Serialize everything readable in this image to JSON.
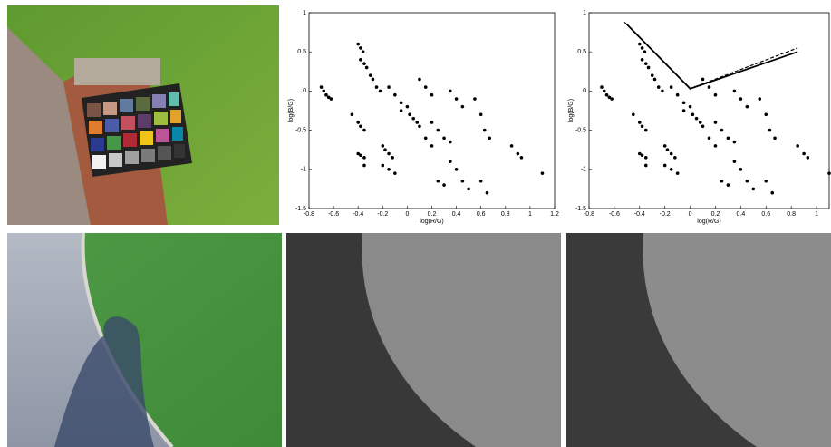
{
  "chart_data": [
    {
      "type": "scatter",
      "xlabel": "log(R/G)",
      "ylabel": "log(B/G)",
      "xlim": [
        -0.8,
        1.2
      ],
      "ylim": [
        -1.5,
        1
      ],
      "xticks": [
        -0.8,
        -0.6,
        -0.4,
        -0.2,
        0,
        0.2,
        0.4,
        0.6,
        0.8,
        1,
        1.2
      ],
      "yticks": [
        -1.5,
        -1,
        -0.5,
        0,
        0.5,
        1
      ],
      "color": "#000000",
      "x": [
        -0.7,
        -0.68,
        -0.66,
        -0.64,
        -0.62,
        -0.4,
        -0.38,
        -0.36,
        -0.38,
        -0.35,
        -0.33,
        -0.3,
        -0.28,
        -0.25,
        -0.22,
        -0.45,
        -0.4,
        -0.38,
        -0.35,
        -0.4,
        -0.38,
        -0.35,
        -0.35,
        -0.2,
        -0.18,
        -0.15,
        -0.12,
        -0.2,
        -0.15,
        -0.1,
        -0.05,
        0,
        0.02,
        0.05,
        0.08,
        0.1,
        -0.15,
        -0.1,
        -0.05,
        0.1,
        0.15,
        0.2,
        0.2,
        0.25,
        0.3,
        0.35,
        0.15,
        0.2,
        0.25,
        0.3,
        0.35,
        0.4,
        0.45,
        0.5,
        0.35,
        0.4,
        0.45,
        0.55,
        0.6,
        0.63,
        0.67,
        0.6,
        0.65,
        0.85,
        0.9,
        0.93,
        1.1
      ],
      "y": [
        0.05,
        0,
        -0.05,
        -0.08,
        -0.1,
        0.6,
        0.55,
        0.5,
        0.4,
        0.35,
        0.3,
        0.2,
        0.15,
        0.05,
        0,
        -0.3,
        -0.4,
        -0.45,
        -0.5,
        -0.8,
        -0.82,
        -0.85,
        -0.95,
        -0.7,
        -0.75,
        -0.8,
        -0.85,
        -0.95,
        -1,
        -1.05,
        -0.25,
        -0.2,
        -0.3,
        -0.35,
        -0.4,
        -0.45,
        0.05,
        -0.05,
        -0.15,
        0.15,
        0.05,
        -0.05,
        -0.4,
        -0.5,
        -0.6,
        -0.65,
        -0.6,
        -0.7,
        -1.15,
        -1.2,
        -0.9,
        -1,
        -1.15,
        -1.25,
        0,
        -0.1,
        -0.2,
        -0.1,
        -0.3,
        -0.5,
        -0.6,
        -1.15,
        -1.3,
        -0.7,
        -0.8,
        -0.85,
        -1.05
      ]
    },
    {
      "type": "scatter",
      "xlabel": "log(R/G)",
      "ylabel": "log(B/G)",
      "xlim": [
        -0.8,
        1.1
      ],
      "ylim": [
        -1.5,
        1
      ],
      "xticks": [
        -0.8,
        -0.6,
        -0.4,
        -0.2,
        0,
        0.2,
        0.4,
        0.6,
        0.8,
        1
      ],
      "yticks": [
        -1.5,
        -1,
        -0.5,
        0,
        0.5,
        1
      ],
      "color": "#000000",
      "x": [
        -0.7,
        -0.68,
        -0.66,
        -0.64,
        -0.62,
        -0.4,
        -0.38,
        -0.36,
        -0.38,
        -0.35,
        -0.33,
        -0.3,
        -0.28,
        -0.25,
        -0.22,
        -0.45,
        -0.4,
        -0.38,
        -0.35,
        -0.4,
        -0.38,
        -0.35,
        -0.35,
        -0.2,
        -0.18,
        -0.15,
        -0.12,
        -0.2,
        -0.15,
        -0.1,
        -0.05,
        0,
        0.02,
        0.05,
        0.08,
        0.1,
        -0.15,
        -0.1,
        -0.05,
        0.1,
        0.15,
        0.2,
        0.2,
        0.25,
        0.3,
        0.35,
        0.15,
        0.2,
        0.25,
        0.3,
        0.35,
        0.4,
        0.45,
        0.5,
        0.35,
        0.4,
        0.45,
        0.55,
        0.6,
        0.63,
        0.67,
        0.6,
        0.65,
        0.85,
        0.9,
        0.93,
        1.1
      ],
      "y": [
        0.05,
        0,
        -0.05,
        -0.08,
        -0.1,
        0.6,
        0.55,
        0.5,
        0.4,
        0.35,
        0.3,
        0.2,
        0.15,
        0.05,
        0,
        -0.3,
        -0.4,
        -0.45,
        -0.5,
        -0.8,
        -0.82,
        -0.85,
        -0.95,
        -0.7,
        -0.75,
        -0.8,
        -0.85,
        -0.95,
        -1,
        -1.05,
        -0.25,
        -0.2,
        -0.3,
        -0.35,
        -0.4,
        -0.45,
        0.05,
        -0.05,
        -0.15,
        0.15,
        0.05,
        -0.05,
        -0.4,
        -0.5,
        -0.6,
        -0.65,
        -0.6,
        -0.7,
        -1.15,
        -1.2,
        -0.9,
        -1,
        -1.15,
        -1.25,
        0,
        -0.1,
        -0.2,
        -0.1,
        -0.3,
        -0.5,
        -0.6,
        -1.15,
        -1.3,
        -0.7,
        -0.8,
        -0.85,
        -1.05
      ],
      "lines": [
        {
          "style": "solid",
          "x": [
            -0.5,
            0,
            0.85
          ],
          "y": [
            0.85,
            0.03,
            0.5
          ]
        },
        {
          "style": "dashed",
          "x": [
            -0.52,
            0,
            0.85
          ],
          "y": [
            0.88,
            0.03,
            0.55
          ]
        }
      ]
    }
  ]
}
